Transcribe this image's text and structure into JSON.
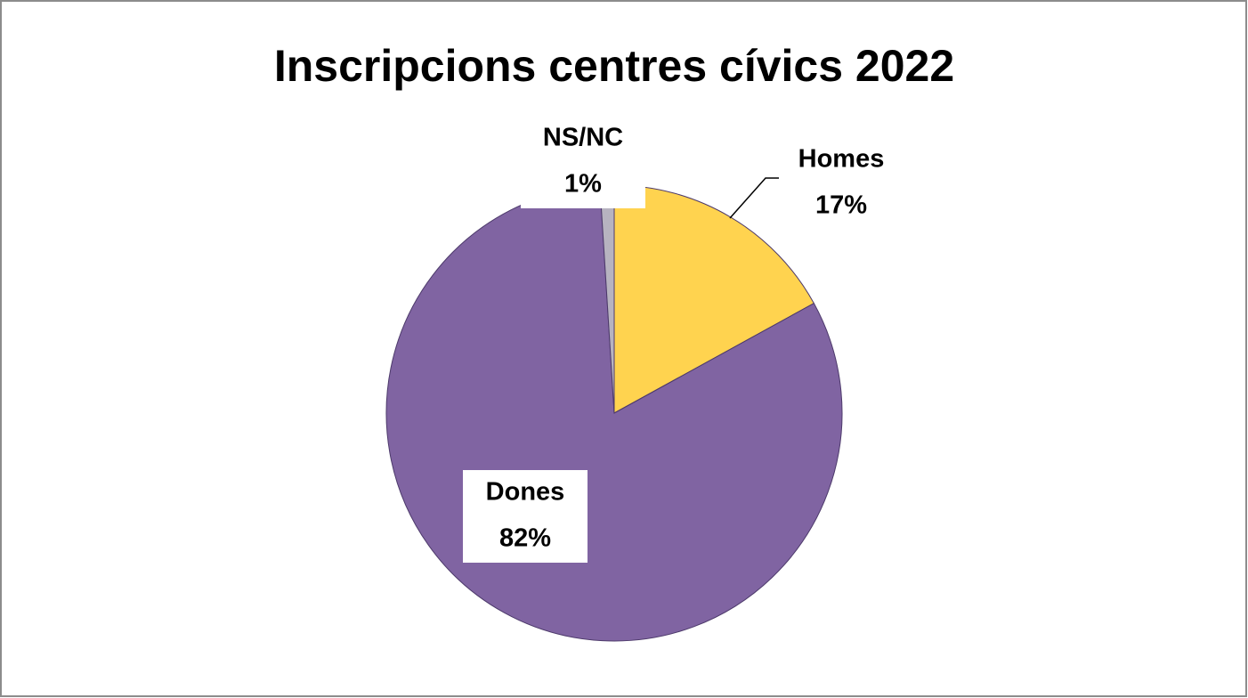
{
  "chart_data": {
    "type": "pie",
    "title": "Inscripcions centres cívics 2022",
    "categories": [
      "Homes",
      "Dones",
      "NS/NC"
    ],
    "values": [
      17,
      82,
      1
    ],
    "value_labels": [
      "17%",
      "82%",
      "1%"
    ],
    "colors": [
      "#ffd34f",
      "#8064a2",
      "#b7b3c0"
    ]
  }
}
